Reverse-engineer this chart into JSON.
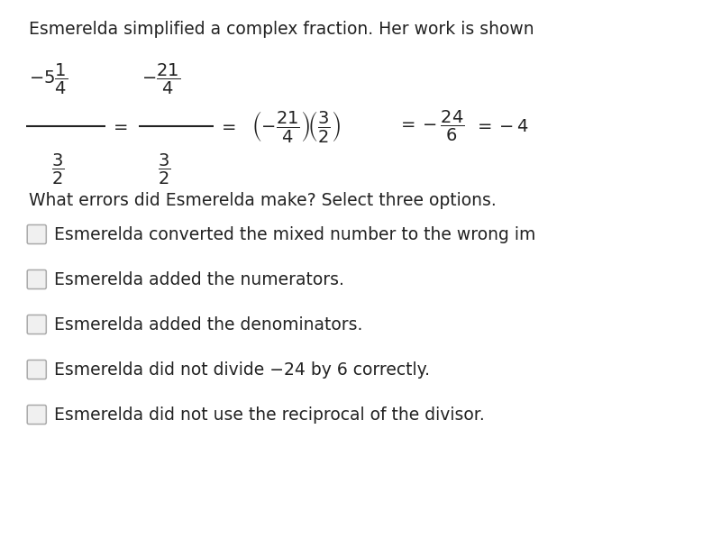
{
  "background_color": "#ffffff",
  "title_text": "Esmerelda simplified a complex fraction. Her work is shown",
  "title_fontsize": 13.5,
  "question_text": "What errors did Esmerelda make? Select three options.",
  "question_fontsize": 13.5,
  "options": [
    "Esmerelda converted the mixed number to the wrong im",
    "Esmerelda added the numerators.",
    "Esmerelda added the denominators.",
    "Esmerelda did not divide −24 by 6 correctly.",
    "Esmerelda did not use the reciprocal of the divisor."
  ],
  "option_fontsize": 13.5,
  "text_color": "#222222",
  "math_fontsize": 14
}
